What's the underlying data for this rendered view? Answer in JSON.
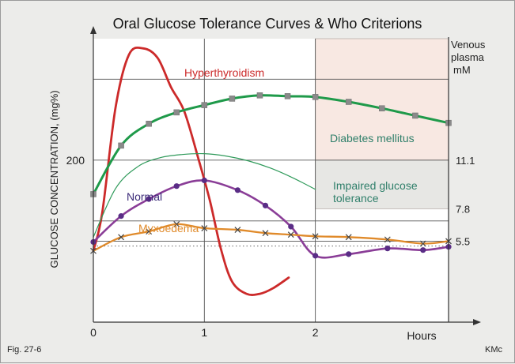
{
  "figure": {
    "title": "Oral Glucose Tolerance Curves & Who Criterions",
    "fig_label": "Fig. 27-6",
    "credit": "KMc"
  },
  "colors": {
    "background": "#ececea",
    "plot": "#ffffff",
    "grid": "#555555",
    "diabetes_zone": "#f8e8e2",
    "impaired_zone": "#e7e7e4",
    "hyperthyroidism": "#cc2a2a",
    "diabetes": "#1f9a4a",
    "normal": "#8a3d97",
    "myxoedema": "#e08a2a",
    "impaired_line": "#2f9a5a",
    "marker_square": "#8a8a8a",
    "marker_dot": "#5a2d86"
  },
  "chart_data": {
    "type": "line",
    "title": "Oral Glucose Tolerance Curves & Who Criterions",
    "xlabel": "Hours",
    "ylabel": "GLUCOSE CONCENTRATION, (mg%)",
    "y2label": [
      "Venous",
      "plasma",
      "mM"
    ],
    "xlim": [
      0,
      3.2
    ],
    "ylim": [
      0,
      350
    ],
    "x_ticks": [
      {
        "value": 0,
        "label": "0"
      },
      {
        "value": 1,
        "label": "1"
      },
      {
        "value": 2,
        "label": "2"
      }
    ],
    "y_ticks": [
      {
        "value": 200,
        "label": "200"
      }
    ],
    "grid_y": [
      100,
      125,
      200,
      300
    ],
    "grid_x": [
      1,
      2
    ],
    "y2_ticks": [
      {
        "value": 200,
        "label": "11.1"
      },
      {
        "value": 140,
        "label": "7.8"
      },
      {
        "value": 100,
        "label": "5.5"
      }
    ],
    "zones": [
      {
        "name": "diabetes-zone",
        "x_from": 2,
        "x_to": 3.2,
        "y_from": 200,
        "y_to": 340
      },
      {
        "name": "impaired-zone",
        "x_from": 2,
        "x_to": 3.2,
        "y_from": 140,
        "y_to": 200
      }
    ],
    "dotted_reference": {
      "y": 94
    },
    "series": [
      {
        "name": "Hyperthyroidism",
        "label": "Hyperthyroidism",
        "color_key": "hyperthyroidism",
        "marker": "none",
        "x": [
          0,
          0.08,
          0.2,
          0.32,
          0.45,
          0.58,
          0.7,
          0.82,
          0.95,
          1.05,
          1.15,
          1.25,
          1.38,
          1.5,
          1.62,
          1.76
        ],
        "y": [
          88,
          135,
          265,
          330,
          338,
          326,
          290,
          260,
          200,
          150,
          90,
          50,
          35,
          35,
          42,
          55
        ]
      },
      {
        "name": "Diabetes mellitus",
        "label": "Diabetes mellitus",
        "color_key": "diabetes",
        "marker": "square",
        "x": [
          0,
          0.25,
          0.5,
          0.75,
          1.0,
          1.25,
          1.5,
          1.75,
          2.0,
          2.3,
          2.6,
          2.9,
          3.2
        ],
        "y": [
          158,
          218,
          245,
          259,
          268,
          276,
          280,
          279,
          278,
          272,
          264,
          255,
          246
        ]
      },
      {
        "name": "Impaired glucose tolerance",
        "label": [
          "Impaired glucose",
          "tolerance"
        ],
        "color_key": "impaired_line",
        "marker": "none",
        "x": [
          0,
          0.2,
          0.4,
          0.6,
          0.8,
          1.0,
          1.2,
          1.4,
          1.6,
          1.8,
          2.0
        ],
        "y": [
          105,
          165,
          192,
          203,
          207,
          208,
          205,
          199,
          190,
          178,
          164
        ]
      },
      {
        "name": "Normal",
        "label": "Normal",
        "color_key": "normal",
        "marker": "dot",
        "x": [
          0,
          0.25,
          0.5,
          0.75,
          1.0,
          1.3,
          1.55,
          1.78,
          2.0,
          2.3,
          2.65,
          2.97,
          3.2
        ],
        "y": [
          99,
          131,
          152,
          168,
          175,
          163,
          144,
          118,
          82,
          84,
          91,
          89,
          93
        ]
      },
      {
        "name": "Myxoedema",
        "label": "Myxoedema",
        "color_key": "myxoedema",
        "marker": "x",
        "x": [
          0,
          0.25,
          0.5,
          0.75,
          1.0,
          1.3,
          1.55,
          1.78,
          2.0,
          2.3,
          2.65,
          2.97,
          3.2
        ],
        "y": [
          88,
          105,
          112,
          121,
          116,
          114,
          110,
          108,
          106,
          105,
          102,
          97,
          100
        ]
      }
    ]
  }
}
